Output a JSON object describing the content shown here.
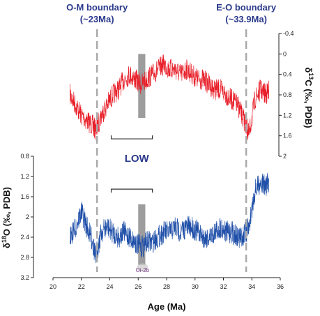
{
  "chart_data": {
    "type": "line",
    "title": "",
    "xlabel": "Age (Ma)",
    "xlim": [
      20,
      36
    ],
    "xticks": [
      "20",
      "22",
      "24",
      "26",
      "28",
      "30",
      "32",
      "34",
      "36"
    ],
    "top_panel": {
      "ylabel": "δ13C (‰, PDB)",
      "ylabel_parts": [
        "δ",
        "13",
        "C (‰, PDB)"
      ],
      "ylim": [
        2,
        -0.4
      ],
      "yticks": [
        "-0.4",
        "0",
        "0.4",
        "0.8",
        "1.2",
        "1.6",
        "2"
      ],
      "series": [
        {
          "color": "#e8202a",
          "x": [
            21.2,
            21.6,
            22.0,
            22.4,
            22.8,
            23.0,
            23.4,
            23.8,
            24.2,
            24.6,
            25.0,
            25.4,
            25.8,
            26.2,
            26.6,
            27.0,
            27.4,
            27.8,
            28.2,
            28.6,
            29.0,
            29.4,
            29.8,
            30.2,
            30.6,
            31.0,
            31.4,
            31.8,
            32.2,
            32.6,
            33.0,
            33.3,
            33.6,
            33.8,
            34.2,
            34.6,
            35.0,
            35.2
          ],
          "y": [
            0.8,
            1.0,
            1.2,
            1.3,
            1.4,
            1.5,
            1.2,
            1.0,
            0.8,
            0.7,
            0.5,
            0.4,
            0.5,
            0.6,
            0.5,
            0.4,
            0.3,
            0.2,
            0.3,
            0.3,
            0.4,
            0.3,
            0.4,
            0.5,
            0.5,
            0.6,
            0.7,
            0.7,
            0.8,
            0.9,
            1.0,
            1.2,
            1.4,
            1.6,
            0.9,
            0.7,
            0.8,
            0.7
          ]
        }
      ]
    },
    "bottom_panel": {
      "ylabel": "δ18O (‰, PDB)",
      "ylabel_parts": [
        "δ",
        "18",
        "O (‰, PDB)"
      ],
      "ylim": [
        3.2,
        0.8
      ],
      "yticks": [
        "0.8",
        "1.2",
        "1.6",
        "2",
        "2.4",
        "2.8",
        "3.2"
      ],
      "series": [
        {
          "color": "#1f4fa8",
          "x": [
            21.2,
            21.6,
            22.0,
            22.4,
            22.8,
            23.0,
            23.4,
            23.8,
            24.2,
            24.6,
            25.0,
            25.4,
            25.8,
            26.2,
            26.6,
            27.0,
            27.4,
            27.8,
            28.2,
            28.6,
            29.0,
            29.4,
            29.8,
            30.2,
            30.6,
            31.0,
            31.4,
            31.8,
            32.2,
            32.6,
            33.0,
            33.3,
            33.6,
            33.8,
            34.2,
            34.6,
            35.0,
            35.2
          ],
          "y": [
            2.4,
            2.2,
            1.9,
            2.2,
            2.5,
            2.8,
            2.3,
            2.2,
            2.3,
            2.4,
            2.3,
            2.4,
            2.5,
            2.6,
            2.5,
            2.5,
            2.4,
            2.3,
            2.3,
            2.2,
            2.3,
            2.2,
            2.2,
            2.3,
            2.4,
            2.4,
            2.3,
            2.2,
            2.3,
            2.3,
            2.4,
            2.4,
            2.3,
            2.2,
            1.5,
            1.3,
            1.4,
            1.3
          ]
        }
      ]
    },
    "boundaries": [
      {
        "label": "O-M boundary",
        "age_label": "(~23Ma)",
        "x": 23.1
      },
      {
        "label": "E-O boundary",
        "age_label": "(~33.9Ma)",
        "x": 33.6
      }
    ],
    "highlight_band": {
      "x": [
        26.0,
        26.5
      ]
    },
    "brackets": [
      {
        "panel": "top",
        "x": [
          24.1,
          27.0
        ],
        "y": 1.66
      },
      {
        "panel": "bottom",
        "x": [
          24.1,
          27.0
        ],
        "y": 1.45
      }
    ],
    "annotations": [
      {
        "text": "LOW",
        "x": 25.9,
        "panel": "bottom",
        "y": 0.85
      },
      {
        "text": "Oi-2b",
        "x": 26.3,
        "panel": "bottom",
        "y": 3.05
      }
    ],
    "grid": false
  }
}
